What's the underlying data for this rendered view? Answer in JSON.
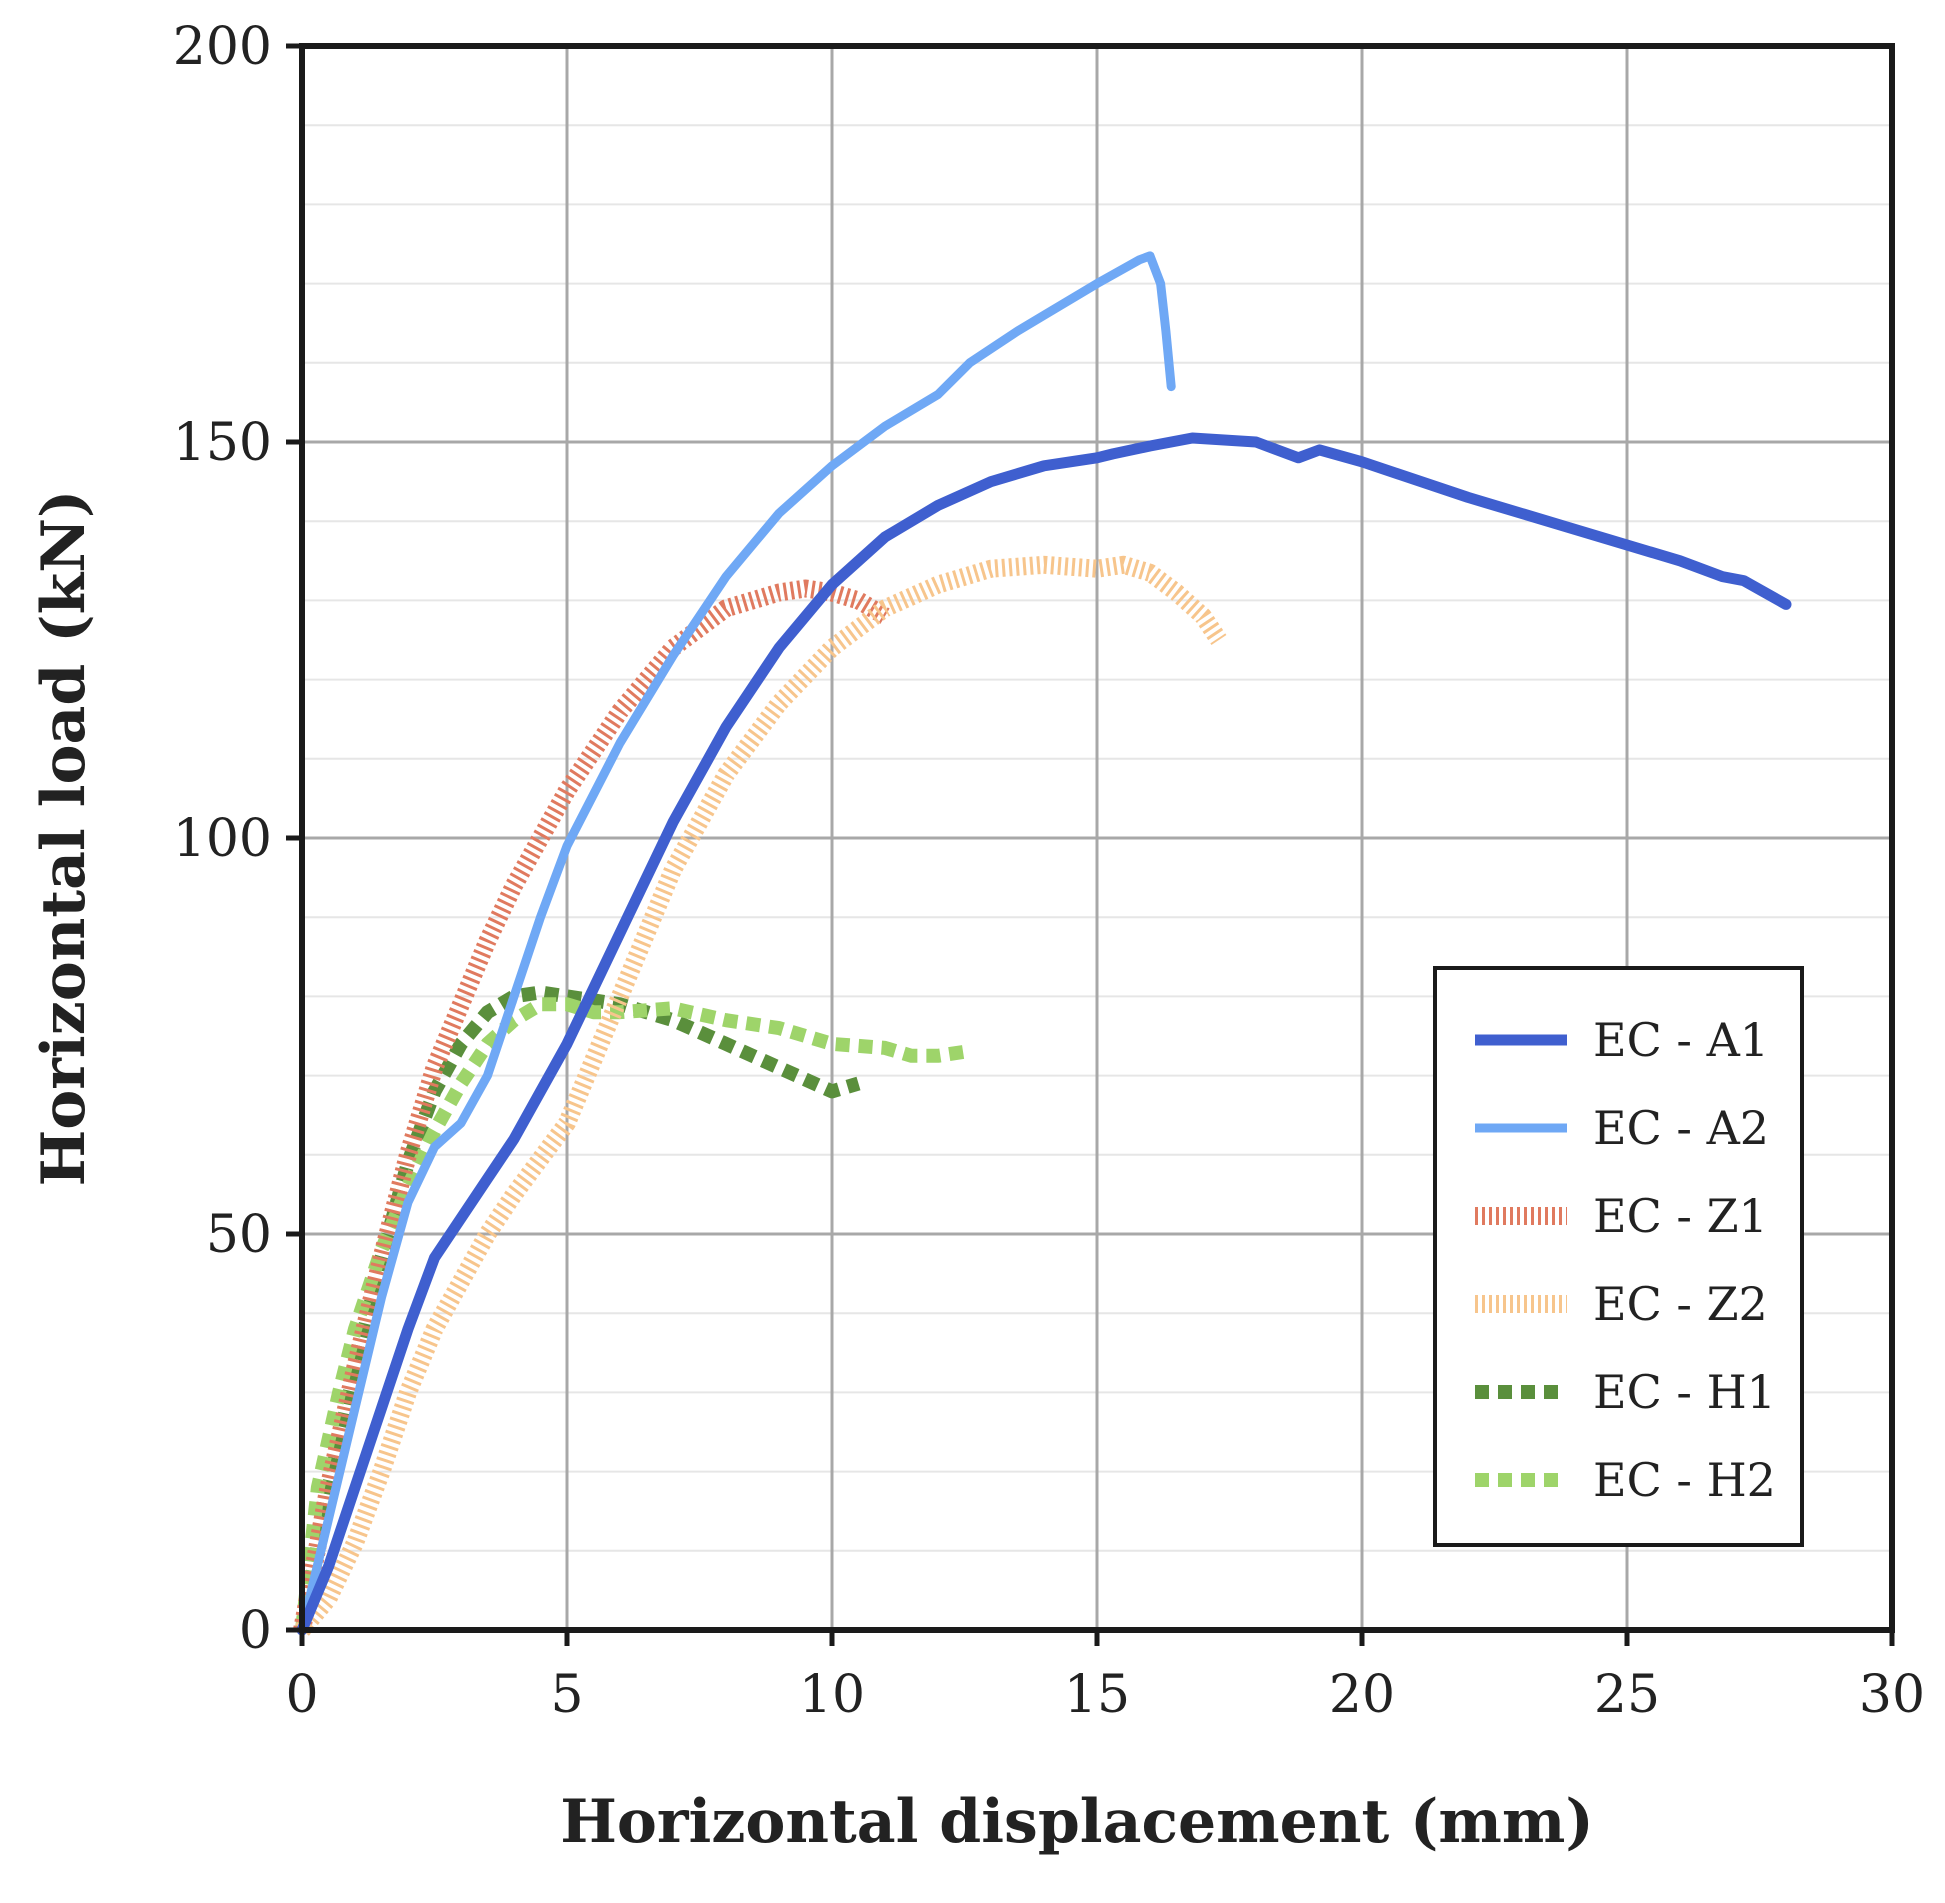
{
  "chart_data": {
    "type": "line",
    "title": "",
    "xlabel": "Horizontal displacement (mm)",
    "ylabel": "Horizontal load (kN)",
    "xlim": [
      0,
      30
    ],
    "ylim": [
      0,
      200
    ],
    "x_ticks": [
      0,
      5,
      10,
      15,
      20,
      25,
      30
    ],
    "y_ticks": [
      0,
      50,
      100,
      150,
      200
    ],
    "x_tick_labels": [
      "0",
      "5",
      "10",
      "15",
      "20",
      "25",
      "30"
    ],
    "y_tick_labels": [
      "0",
      "50",
      "100",
      "150",
      "200"
    ],
    "grid": true,
    "legend_position": "center-right",
    "series": [
      {
        "name": "EC - A1",
        "color": "#3f5fcf",
        "style": "solid",
        "x": [
          0,
          0.5,
          1,
          1.5,
          2,
          2.5,
          3,
          3.5,
          4,
          4.5,
          5,
          6,
          7,
          8,
          9,
          10,
          11,
          12,
          13,
          14,
          15,
          15.3,
          16,
          16.8,
          18,
          18.8,
          19.2,
          20,
          22,
          24,
          25,
          26,
          26.8,
          27.2,
          28
        ],
        "values": [
          0,
          8,
          18,
          28,
          38,
          47,
          52,
          57,
          62,
          68,
          74,
          88,
          102,
          114,
          124,
          132,
          138,
          142,
          145,
          147,
          148,
          148.5,
          149.5,
          150.5,
          150,
          148,
          149,
          147.5,
          143,
          139,
          137,
          135,
          133,
          132.5,
          129.5
        ]
      },
      {
        "name": "EC - A2",
        "color": "#6fa8f5",
        "style": "solid",
        "x": [
          0,
          0.5,
          1,
          1.5,
          2,
          2.5,
          3,
          3.5,
          4,
          4.5,
          5,
          6,
          7,
          8,
          9,
          10,
          11,
          12,
          12.6,
          13.5,
          14,
          15,
          15.8,
          16,
          16.2,
          16.3,
          16.4
        ],
        "values": [
          0,
          14,
          28,
          42,
          54,
          61,
          64,
          70,
          80,
          90,
          99,
          112,
          123,
          133,
          141,
          147,
          152,
          156,
          160,
          164,
          166,
          170,
          173,
          173.5,
          170,
          164,
          157
        ]
      },
      {
        "name": "EC - Z1",
        "color": "#e07a5f",
        "style": "dotted",
        "x": [
          0,
          0.5,
          1,
          1.5,
          2,
          2.5,
          3,
          3.5,
          4,
          5,
          6,
          7,
          8,
          9,
          9.5,
          10,
          10.5,
          11
        ],
        "values": [
          0,
          18,
          33,
          47,
          60,
          71,
          79,
          87,
          94,
          106,
          116,
          124,
          129,
          131,
          131.5,
          131,
          130,
          128
        ]
      },
      {
        "name": "EC - Z2",
        "color": "#f7c58c",
        "style": "dotted",
        "x": [
          0,
          0.5,
          1,
          1.5,
          2,
          2.5,
          3,
          3.5,
          4,
          5,
          6,
          7,
          8,
          9,
          10,
          11,
          12,
          13,
          14,
          15,
          15.5,
          16,
          16.5,
          17,
          17.3
        ],
        "values": [
          0,
          4,
          11,
          20,
          30,
          38,
          44,
          50,
          55,
          64,
          80,
          96,
          108,
          117,
          124,
          129,
          132,
          134,
          134.5,
          134,
          134.5,
          133.5,
          131,
          128,
          125
        ]
      },
      {
        "name": "EC - H1",
        "color": "#5a8f3c",
        "style": "dashed",
        "x": [
          0,
          0.5,
          1,
          1.5,
          2,
          2.5,
          3,
          3.5,
          4,
          4.5,
          5,
          6,
          7,
          8,
          9,
          10,
          10.5
        ],
        "values": [
          0,
          18,
          33,
          47,
          59,
          68,
          74,
          78,
          80,
          80.5,
          80,
          79,
          77,
          74,
          71,
          68,
          69
        ]
      },
      {
        "name": "EC - H2",
        "color": "#9ed46a",
        "style": "dashed",
        "x": [
          0,
          0.3,
          0.7,
          1,
          1.5,
          2,
          2.5,
          3,
          3.5,
          4,
          4.5,
          5,
          5.5,
          6,
          7,
          8,
          9,
          10,
          11,
          11.5,
          12,
          12.5
        ],
        "values": [
          0,
          18,
          30,
          38,
          48,
          56,
          63,
          69,
          74,
          77,
          79,
          79,
          78,
          78,
          78.5,
          77,
          76,
          74,
          73.5,
          72.5,
          72.5,
          73
        ]
      }
    ]
  }
}
